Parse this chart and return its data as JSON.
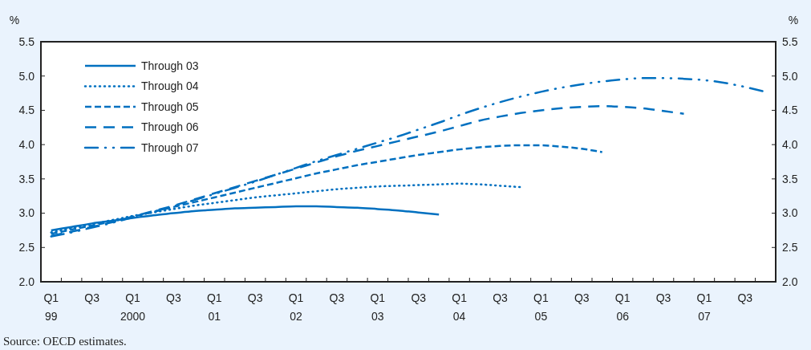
{
  "chart_data": {
    "type": "line",
    "ylabel": "%",
    "y2label": "%",
    "annotations": [
      "Source:  OECD estimates."
    ],
    "categories": [
      "Q1\n99",
      null,
      "Q3",
      null,
      "Q1\n2000",
      null,
      "Q3",
      null,
      "Q1\n01",
      null,
      "Q3",
      null,
      "Q1\n02",
      null,
      "Q3",
      null,
      "Q1\n03",
      null,
      "Q3",
      null,
      "Q1\n04",
      null,
      "Q3",
      null,
      "Q1\n05",
      null,
      "Q3",
      null,
      "Q1\n06",
      null,
      "Q3",
      null,
      "Q1\n07",
      null,
      "Q3",
      null
    ],
    "ylim": [
      2.0,
      5.5
    ],
    "yticks": [
      {
        "value": 2,
        "label": "2.0"
      },
      {
        "value": 2.5,
        "label": "2.5"
      },
      {
        "value": 3,
        "label": "3.0"
      },
      {
        "value": 3.5,
        "label": "3.5"
      },
      {
        "value": 4,
        "label": "4.0"
      },
      {
        "value": 4.5,
        "label": "4.5"
      },
      {
        "value": 5,
        "label": "5.0"
      },
      {
        "value": 5.5,
        "label": "5.5"
      }
    ],
    "y2lim": [
      2.0,
      5.5
    ],
    "y2ticks": [
      {
        "value": 2,
        "label": "2.0"
      },
      {
        "value": 2.5,
        "label": "2.5"
      },
      {
        "value": 3,
        "label": "3.0"
      },
      {
        "value": 3.5,
        "label": "3.5"
      },
      {
        "value": 4,
        "label": "4.0"
      },
      {
        "value": 4.5,
        "label": "4.5"
      },
      {
        "value": 5,
        "label": "5.0"
      },
      {
        "value": 5.5,
        "label": "5.5"
      }
    ],
    "legend": "top left",
    "grid": false,
    "series": [
      {
        "name": "Through 03",
        "color": "#0070c0",
        "line_style": "solid",
        "values": [
          2.75,
          2.8,
          2.85,
          2.89,
          2.93,
          2.97,
          3.0,
          3.03,
          3.05,
          3.07,
          3.08,
          3.09,
          3.1,
          3.1,
          3.09,
          3.08,
          3.06,
          3.04,
          3.01,
          2.98,
          null,
          null,
          null,
          null,
          null,
          null,
          null,
          null,
          null,
          null,
          null,
          null,
          null,
          null,
          null,
          null
        ]
      },
      {
        "name": "Through 04",
        "color": "#0070c0",
        "line_style": "dotted",
        "values": [
          2.72,
          2.78,
          2.84,
          2.9,
          2.96,
          3.01,
          3.06,
          3.11,
          3.15,
          3.19,
          3.23,
          3.26,
          3.29,
          3.32,
          3.35,
          3.37,
          3.39,
          3.4,
          3.41,
          3.42,
          3.43,
          3.42,
          3.4,
          3.38,
          null,
          null,
          null,
          null,
          null,
          null,
          null,
          null,
          null,
          null,
          null,
          null
        ]
      },
      {
        "name": "Through 05",
        "color": "#0070c0",
        "line_style": "dashed",
        "values": [
          2.7,
          2.76,
          2.82,
          2.88,
          2.95,
          3.02,
          3.09,
          3.16,
          3.23,
          3.3,
          3.37,
          3.44,
          3.51,
          3.58,
          3.64,
          3.7,
          3.75,
          3.8,
          3.85,
          3.89,
          3.93,
          3.96,
          3.98,
          3.99,
          3.99,
          3.97,
          3.94,
          3.89,
          null,
          null,
          null,
          null,
          null,
          null,
          null,
          null
        ]
      },
      {
        "name": "Through 06",
        "color": "#0070c0",
        "line_style": "longdashed",
        "values": [
          2.67,
          2.73,
          2.8,
          2.87,
          2.95,
          3.03,
          3.11,
          3.2,
          3.29,
          3.38,
          3.47,
          3.56,
          3.65,
          3.74,
          3.83,
          3.91,
          3.98,
          4.05,
          4.12,
          4.19,
          4.27,
          4.35,
          4.41,
          4.46,
          4.5,
          4.53,
          4.55,
          4.56,
          4.55,
          4.53,
          4.49,
          4.45,
          null,
          null,
          null,
          null
        ]
      },
      {
        "name": "Through 07",
        "color": "#0070c0",
        "line_style": "dashdotdot",
        "values": [
          2.66,
          2.72,
          2.79,
          2.86,
          2.94,
          3.02,
          3.1,
          3.19,
          3.28,
          3.37,
          3.46,
          3.56,
          3.66,
          3.76,
          3.85,
          3.94,
          4.03,
          4.12,
          4.22,
          4.32,
          4.43,
          4.53,
          4.62,
          4.7,
          4.77,
          4.83,
          4.88,
          4.92,
          4.95,
          4.97,
          4.97,
          4.96,
          4.94,
          4.9,
          4.84,
          4.77
        ]
      }
    ]
  }
}
